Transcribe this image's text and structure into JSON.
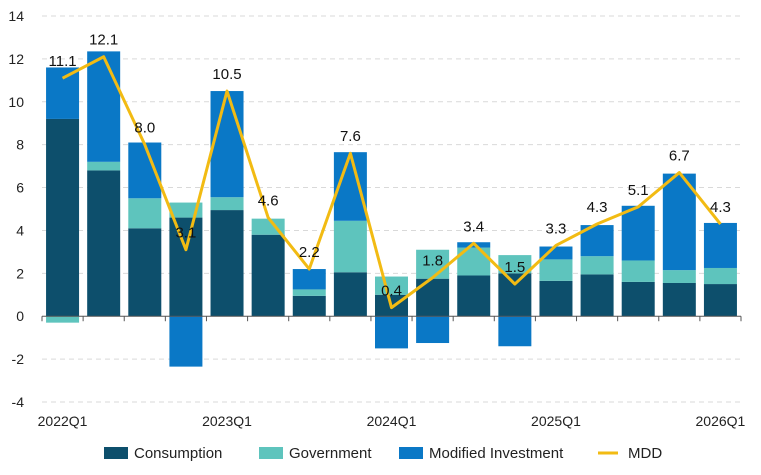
{
  "chart_data": {
    "type": "bar",
    "subtype": "stacked-bar-with-line",
    "title": "",
    "xlabel": "",
    "ylabel": "",
    "ylim": [
      -4,
      14
    ],
    "yticks": [
      -4,
      -2,
      0,
      2,
      4,
      6,
      8,
      10,
      12,
      14
    ],
    "grid": "horizontal-dashed",
    "legend_position": "bottom",
    "categories": [
      "2022Q1",
      "2022Q2",
      "2022Q3",
      "2022Q4",
      "2023Q1",
      "2023Q2",
      "2023Q3",
      "2023Q4",
      "2024Q1",
      "2024Q2",
      "2024Q3",
      "2024Q4",
      "2025Q1",
      "2025Q2",
      "2025Q3",
      "2025Q4",
      "2026Q1"
    ],
    "x_tick_labels": [
      {
        "index": 0,
        "label": "2022Q1"
      },
      {
        "index": 4,
        "label": "2023Q1"
      },
      {
        "index": 8,
        "label": "2024Q1"
      },
      {
        "index": 12,
        "label": "2025Q1"
      },
      {
        "index": 16,
        "label": "2026Q1"
      }
    ],
    "series": [
      {
        "name": "Consumption",
        "color": "#0d4f6c",
        "kind": "bar",
        "values": [
          9.2,
          6.8,
          4.1,
          4.6,
          4.95,
          3.8,
          0.95,
          2.05,
          1.0,
          1.75,
          1.9,
          2.0,
          1.65,
          1.95,
          1.6,
          1.55,
          1.5
        ]
      },
      {
        "name": "Government",
        "color": "#5ec4bd",
        "kind": "bar",
        "values": [
          -0.3,
          0.4,
          1.4,
          0.7,
          0.6,
          0.75,
          0.3,
          2.4,
          0.85,
          1.35,
          1.3,
          0.85,
          1.0,
          0.85,
          1.0,
          0.6,
          0.75
        ]
      },
      {
        "name": "Modified Investment",
        "color": "#0a78c6",
        "kind": "bar",
        "values": [
          2.4,
          5.15,
          2.6,
          -2.35,
          4.95,
          0.0,
          0.95,
          3.2,
          -1.5,
          -1.25,
          0.25,
          -1.4,
          0.6,
          1.45,
          2.55,
          4.5,
          2.1
        ]
      },
      {
        "name": "MDD",
        "color": "#f2bb13",
        "kind": "line",
        "values": [
          11.1,
          12.1,
          8.0,
          3.1,
          10.5,
          4.6,
          2.2,
          7.6,
          0.4,
          1.8,
          3.4,
          1.5,
          3.3,
          4.3,
          5.1,
          6.7,
          4.3
        ],
        "labels": [
          "11.1",
          "12.1",
          "8.0",
          "3.1",
          "10.5",
          "4.6",
          "2.2",
          "7.6",
          "0.4",
          "1.8",
          "3.4",
          "1.5",
          "3.3",
          "4.3",
          "5.1",
          "6.7",
          "4.3"
        ]
      }
    ]
  }
}
